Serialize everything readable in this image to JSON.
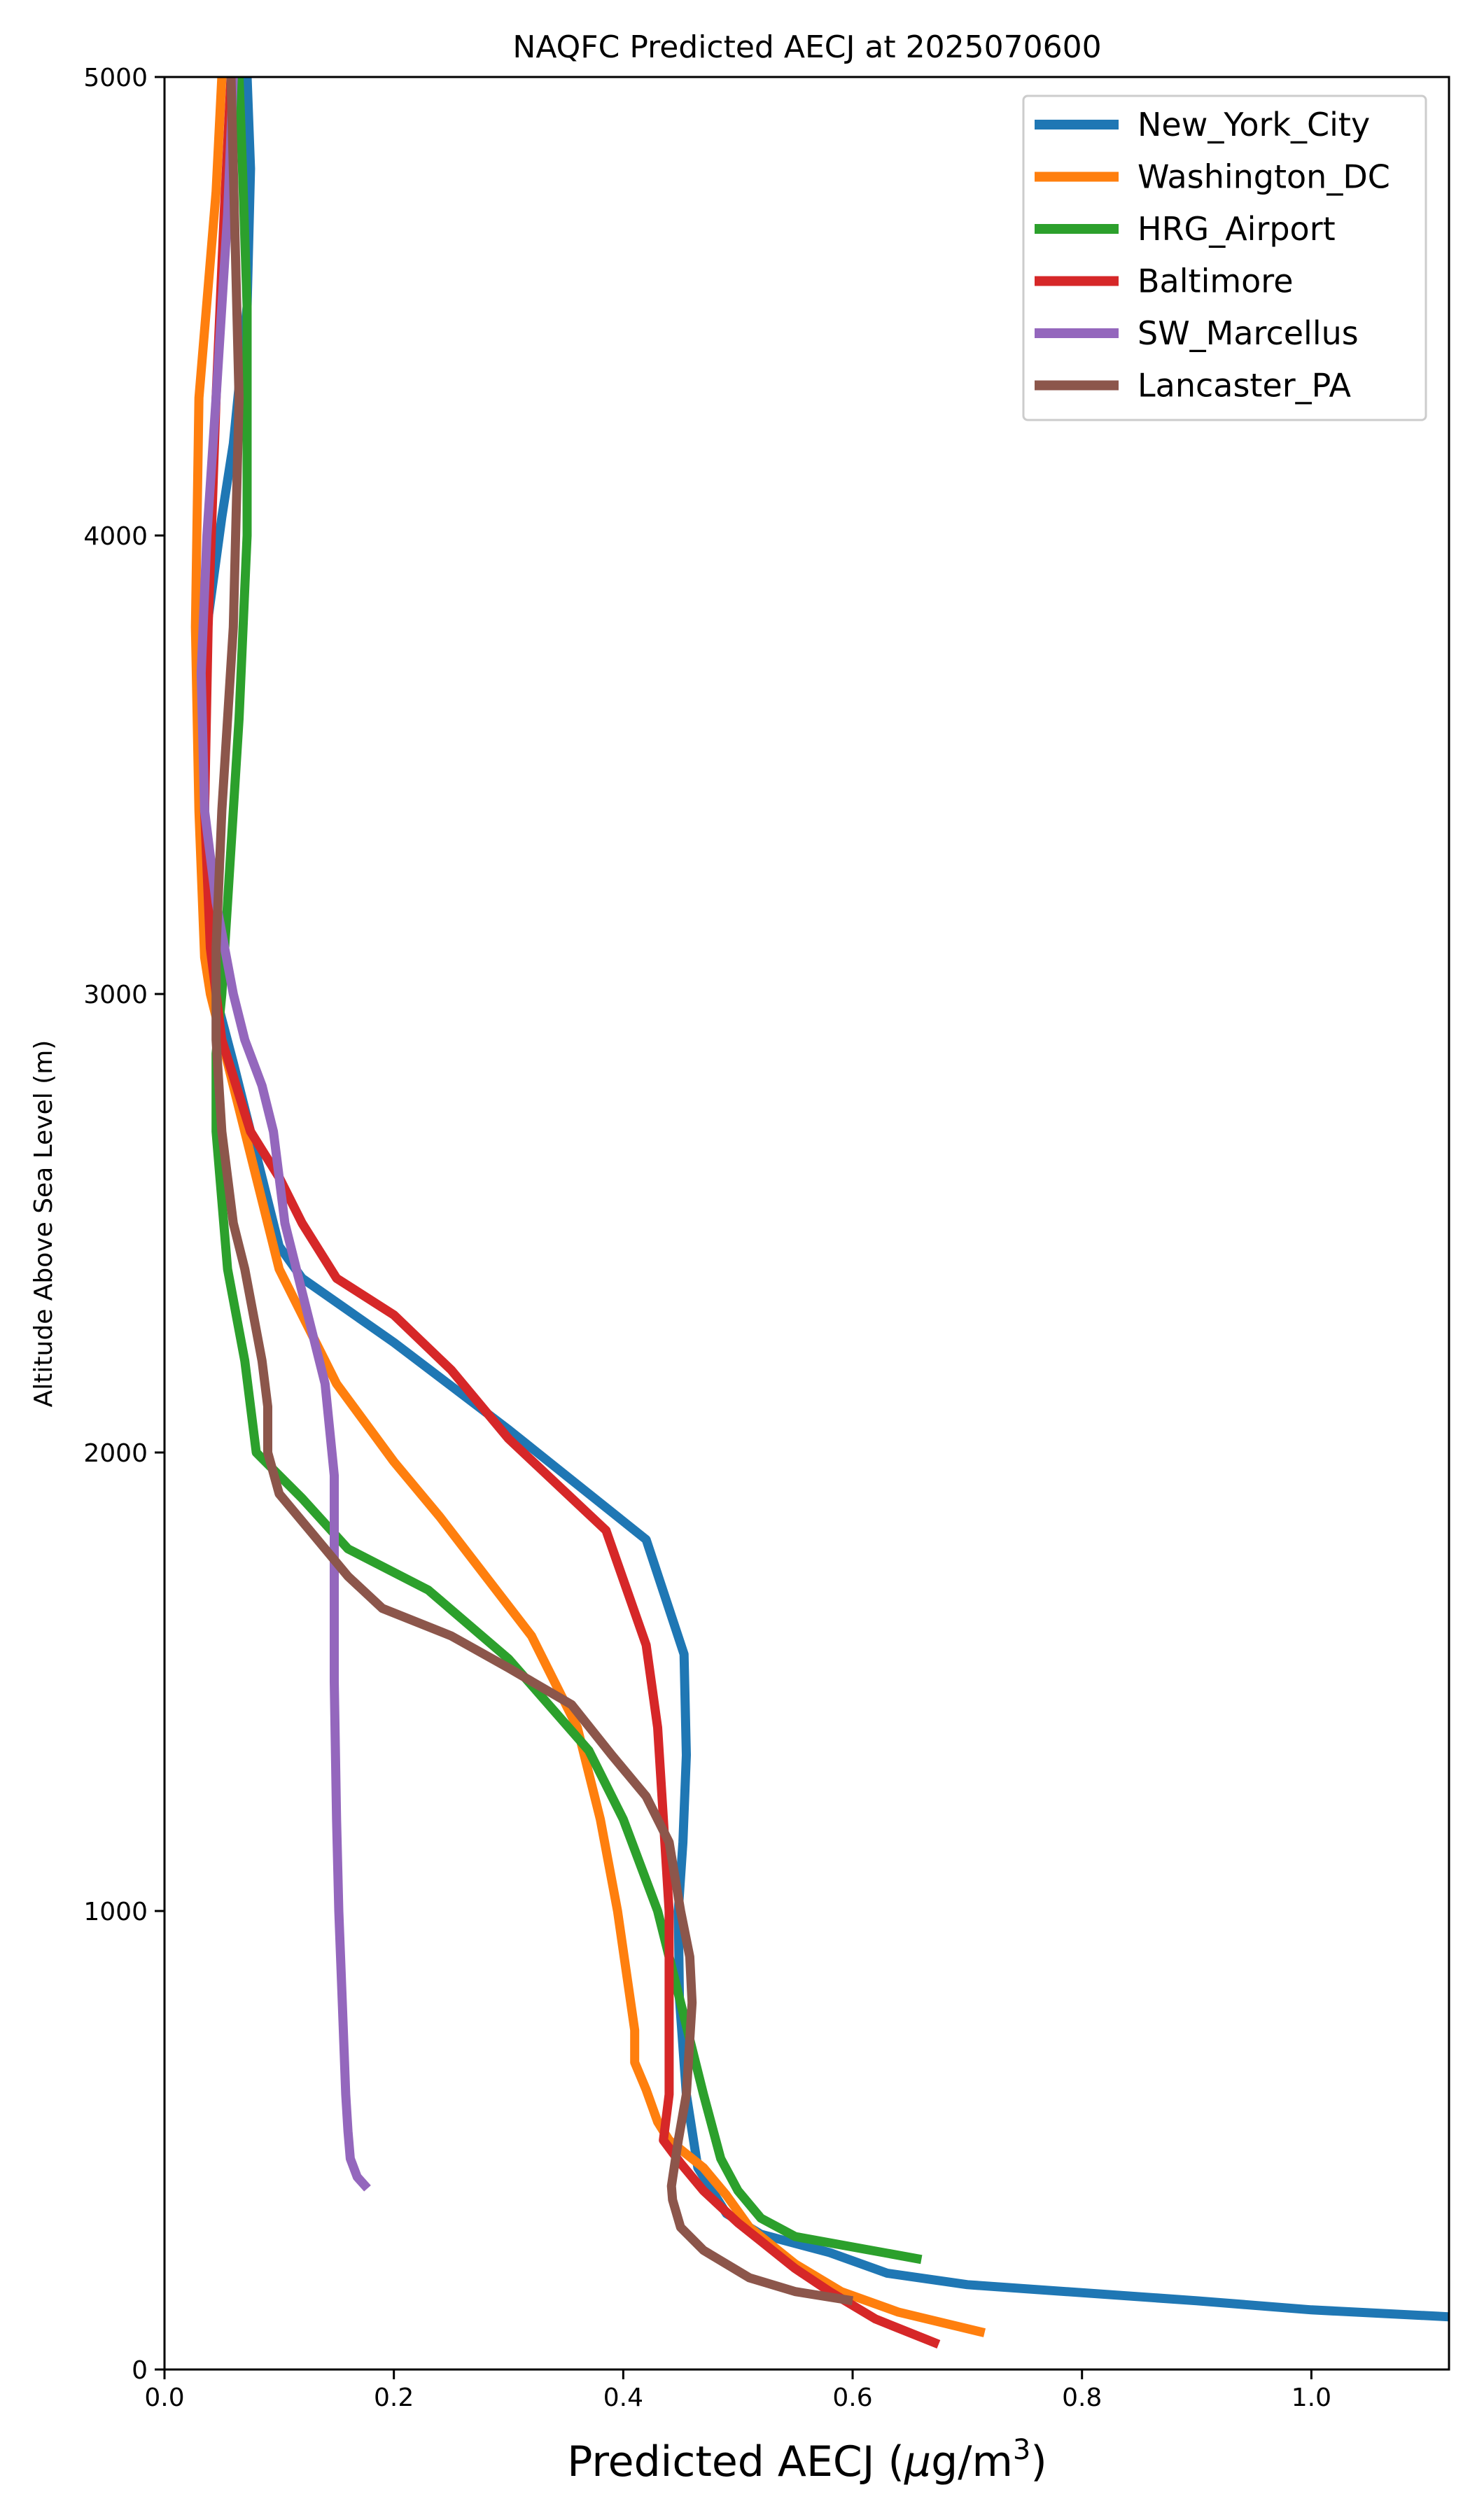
{
  "chart_data": {
    "type": "line",
    "title": "NAQFC Predicted AECJ at 2025070600",
    "xlabel_main": "Predicted AECJ (",
    "xlabel_mu": "μ",
    "xlabel_unit": "g/m",
    "xlabel_sup": "3",
    "xlabel_close": ")",
    "ylabel": "Altitude Above Sea Level (m)",
    "xlim": [
      0,
      1.12
    ],
    "ylim": [
      0,
      5000
    ],
    "x_ticks": [
      0.0,
      0.2,
      0.4,
      0.6,
      0.8,
      1.0
    ],
    "x_tick_labels": [
      "0.0",
      "0.2",
      "0.4",
      "0.6",
      "0.8",
      "1.0"
    ],
    "y_ticks": [
      0,
      1000,
      2000,
      3000,
      4000,
      5000
    ],
    "y_tick_labels": [
      "0",
      "1000",
      "2000",
      "3000",
      "4000",
      "5000"
    ],
    "grid": false,
    "legend_position": "top-right",
    "series": [
      {
        "name": "New_York_City",
        "color": "#1f77b4",
        "points": [
          [
            1.12,
            115
          ],
          [
            1.0,
            130
          ],
          [
            0.9,
            150
          ],
          [
            0.7,
            185
          ],
          [
            0.63,
            210
          ],
          [
            0.58,
            255
          ],
          [
            0.52,
            295
          ],
          [
            0.49,
            340
          ],
          [
            0.465,
            440
          ],
          [
            0.455,
            600
          ],
          [
            0.449,
            810
          ],
          [
            0.448,
            1000
          ],
          [
            0.452,
            1150
          ],
          [
            0.455,
            1340
          ],
          [
            0.453,
            1560
          ],
          [
            0.42,
            1810
          ],
          [
            0.3,
            2050
          ],
          [
            0.2,
            2240
          ],
          [
            0.12,
            2380
          ],
          [
            0.1,
            2450
          ],
          [
            0.08,
            2650
          ],
          [
            0.06,
            2850
          ],
          [
            0.04,
            3040
          ],
          [
            0.035,
            3400
          ],
          [
            0.037,
            3800
          ],
          [
            0.05,
            4040
          ],
          [
            0.06,
            4200
          ],
          [
            0.072,
            4500
          ],
          [
            0.075,
            4800
          ],
          [
            0.072,
            5000
          ]
        ]
      },
      {
        "name": "Washington_DC",
        "color": "#ff7f0e",
        "points": [
          [
            0.715,
            80
          ],
          [
            0.64,
            125
          ],
          [
            0.59,
            170
          ],
          [
            0.55,
            230
          ],
          [
            0.51,
            310
          ],
          [
            0.49,
            380
          ],
          [
            0.47,
            440
          ],
          [
            0.44,
            500
          ],
          [
            0.43,
            540
          ],
          [
            0.42,
            610
          ],
          [
            0.41,
            670
          ],
          [
            0.41,
            740
          ],
          [
            0.395,
            1000
          ],
          [
            0.38,
            1200
          ],
          [
            0.36,
            1400
          ],
          [
            0.32,
            1600
          ],
          [
            0.24,
            1860
          ],
          [
            0.2,
            1980
          ],
          [
            0.15,
            2150
          ],
          [
            0.1,
            2400
          ],
          [
            0.08,
            2600
          ],
          [
            0.06,
            2800
          ],
          [
            0.04,
            3000
          ],
          [
            0.035,
            3080
          ],
          [
            0.03,
            3400
          ],
          [
            0.027,
            3800
          ],
          [
            0.03,
            4300
          ],
          [
            0.045,
            4750
          ],
          [
            0.05,
            5000
          ]
        ]
      },
      {
        "name": "HRG_Airport",
        "color": "#2ca02c",
        "points": [
          [
            0.66,
            240
          ],
          [
            0.55,
            290
          ],
          [
            0.52,
            330
          ],
          [
            0.5,
            390
          ],
          [
            0.485,
            460
          ],
          [
            0.47,
            600
          ],
          [
            0.45,
            800
          ],
          [
            0.43,
            1000
          ],
          [
            0.4,
            1200
          ],
          [
            0.37,
            1350
          ],
          [
            0.3,
            1550
          ],
          [
            0.23,
            1700
          ],
          [
            0.16,
            1790
          ],
          [
            0.12,
            1900
          ],
          [
            0.08,
            2000
          ],
          [
            0.07,
            2200
          ],
          [
            0.055,
            2400
          ],
          [
            0.05,
            2550
          ],
          [
            0.045,
            2700
          ],
          [
            0.045,
            2870
          ],
          [
            0.05,
            3000
          ],
          [
            0.055,
            3200
          ],
          [
            0.06,
            3400
          ],
          [
            0.065,
            3600
          ],
          [
            0.072,
            4000
          ],
          [
            0.072,
            4500
          ],
          [
            0.068,
            4800
          ],
          [
            0.065,
            5000
          ]
        ]
      },
      {
        "name": "Baltimore",
        "color": "#d62728",
        "points": [
          [
            0.675,
            55
          ],
          [
            0.62,
            110
          ],
          [
            0.58,
            170
          ],
          [
            0.55,
            220
          ],
          [
            0.52,
            280
          ],
          [
            0.5,
            320
          ],
          [
            0.47,
            390
          ],
          [
            0.45,
            450
          ],
          [
            0.435,
            500
          ],
          [
            0.44,
            600
          ],
          [
            0.44,
            1000
          ],
          [
            0.435,
            1200
          ],
          [
            0.43,
            1400
          ],
          [
            0.42,
            1580
          ],
          [
            0.385,
            1830
          ],
          [
            0.3,
            2030
          ],
          [
            0.25,
            2180
          ],
          [
            0.2,
            2300
          ],
          [
            0.15,
            2380
          ],
          [
            0.12,
            2500
          ],
          [
            0.1,
            2600
          ],
          [
            0.075,
            2700
          ],
          [
            0.05,
            2900
          ],
          [
            0.04,
            3100
          ],
          [
            0.035,
            3400
          ],
          [
            0.038,
            3800
          ],
          [
            0.045,
            4300
          ],
          [
            0.052,
            4700
          ],
          [
            0.058,
            5000
          ]
        ]
      },
      {
        "name": "SW_Marcellus",
        "color": "#9467bd",
        "points": [
          [
            0.177,
            395
          ],
          [
            0.168,
            420
          ],
          [
            0.162,
            460
          ],
          [
            0.16,
            520
          ],
          [
            0.158,
            600
          ],
          [
            0.155,
            800
          ],
          [
            0.152,
            1000
          ],
          [
            0.15,
            1200
          ],
          [
            0.148,
            1500
          ],
          [
            0.148,
            1800
          ],
          [
            0.148,
            1950
          ],
          [
            0.14,
            2150
          ],
          [
            0.12,
            2350
          ],
          [
            0.105,
            2500
          ],
          [
            0.095,
            2700
          ],
          [
            0.085,
            2800
          ],
          [
            0.07,
            2900
          ],
          [
            0.06,
            3000
          ],
          [
            0.045,
            3200
          ],
          [
            0.035,
            3400
          ],
          [
            0.032,
            3700
          ],
          [
            0.037,
            4000
          ],
          [
            0.045,
            4300
          ],
          [
            0.055,
            4700
          ],
          [
            0.06,
            5000
          ]
        ]
      },
      {
        "name": "Lancaster_PA",
        "color": "#8c564b",
        "points": [
          [
            0.6,
            150
          ],
          [
            0.55,
            170
          ],
          [
            0.51,
            200
          ],
          [
            0.47,
            260
          ],
          [
            0.45,
            310
          ],
          [
            0.443,
            370
          ],
          [
            0.442,
            400
          ],
          [
            0.448,
            500
          ],
          [
            0.455,
            600
          ],
          [
            0.46,
            800
          ],
          [
            0.458,
            900
          ],
          [
            0.45,
            1000
          ],
          [
            0.44,
            1150
          ],
          [
            0.42,
            1250
          ],
          [
            0.39,
            1340
          ],
          [
            0.355,
            1450
          ],
          [
            0.3,
            1530
          ],
          [
            0.25,
            1600
          ],
          [
            0.19,
            1660
          ],
          [
            0.16,
            1730
          ],
          [
            0.13,
            1820
          ],
          [
            0.1,
            1910
          ],
          [
            0.09,
            2000
          ],
          [
            0.09,
            2100
          ],
          [
            0.085,
            2200
          ],
          [
            0.07,
            2400
          ],
          [
            0.06,
            2500
          ],
          [
            0.05,
            2700
          ],
          [
            0.045,
            2900
          ],
          [
            0.045,
            3100
          ],
          [
            0.05,
            3400
          ],
          [
            0.06,
            3800
          ],
          [
            0.062,
            4000
          ],
          [
            0.065,
            4300
          ],
          [
            0.062,
            4600
          ],
          [
            0.058,
            5000
          ]
        ]
      }
    ]
  }
}
